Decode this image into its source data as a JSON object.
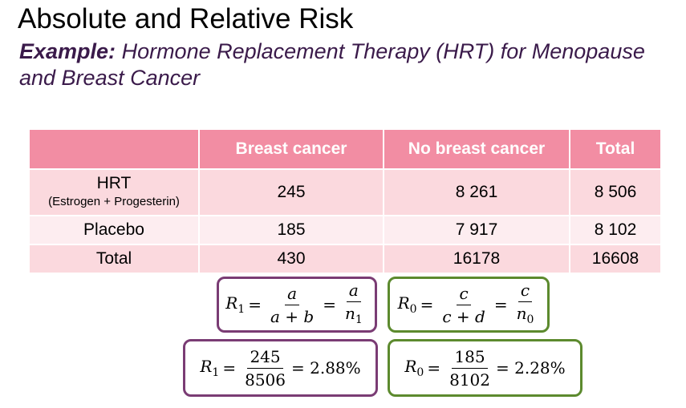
{
  "title": "Absolute and Relative Risk",
  "subtitle": {
    "label": "Example:",
    "text": " Hormone Replacement Therapy (HRT) for Menopause and Breast Cancer"
  },
  "table": {
    "headers": [
      "",
      "Breast cancer",
      "No breast cancer",
      "Total"
    ],
    "rows": [
      {
        "label": "HRT",
        "sublabel": "(Estrogen + Progesterin)",
        "cells": [
          "245",
          "8 261",
          "8 506"
        ]
      },
      {
        "label": "Placebo",
        "cells": [
          "185",
          "7 917",
          "8 102"
        ]
      },
      {
        "label": "Total",
        "cells": [
          "430",
          "16178",
          "16608"
        ]
      }
    ]
  },
  "colors": {
    "header_bg": "#f28da3",
    "row_bg": "#fbd9de",
    "row_alt_bg": "#fdedf0",
    "box_purple": "#7a3c74",
    "box_green": "#5c8a2e"
  },
  "formulas": {
    "r1_symbolic": {
      "lhs": "R",
      "lhs_sub": "1",
      "num1": "a",
      "den1": "a + b",
      "num2": "a",
      "den2": "n",
      "den2_sub": "1"
    },
    "r0_symbolic": {
      "lhs": "R",
      "lhs_sub": "0",
      "num1": "c",
      "den1": "c + d",
      "num2": "c",
      "den2": "n",
      "den2_sub": "0"
    },
    "r1_numeric": {
      "lhs": "R",
      "lhs_sub": "1",
      "num": "245",
      "den": "8506",
      "result": "= 2.88%"
    },
    "r0_numeric": {
      "lhs": "R",
      "lhs_sub": "0",
      "num": "185",
      "den": "8102",
      "result": "= 2.28%"
    }
  }
}
